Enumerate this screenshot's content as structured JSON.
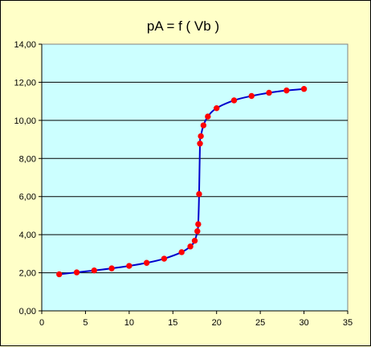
{
  "chart_data": {
    "type": "scatter",
    "title": "pA = f ( Vb )",
    "xlabel": "",
    "ylabel": "",
    "xlim": [
      0,
      35
    ],
    "ylim": [
      0,
      14
    ],
    "x_ticks": [
      0,
      5,
      10,
      15,
      20,
      25,
      30,
      35
    ],
    "y_ticks": [
      0,
      2,
      4,
      6,
      8,
      10,
      12,
      14
    ],
    "x_tick_labels": [
      "0",
      "5",
      "10",
      "15",
      "20",
      "25",
      "30",
      "35"
    ],
    "y_tick_labels": [
      "0,00",
      "2,00",
      "4,00",
      "6,00",
      "8,00",
      "10,00",
      "12,00",
      "14,00"
    ],
    "grid": "horizontal",
    "legend": "none",
    "series": [
      {
        "marker_color": "#ff0000",
        "line_color": "#0000cc",
        "x": [
          2,
          4,
          6,
          8,
          10,
          12,
          14,
          16,
          17,
          17.5,
          17.8,
          17.9,
          18,
          18.1,
          18.2,
          18.5,
          19,
          20,
          22,
          24,
          26,
          28,
          30
        ],
        "y": [
          1.92,
          2.02,
          2.12,
          2.23,
          2.36,
          2.52,
          2.74,
          3.08,
          3.38,
          3.68,
          4.18,
          4.55,
          6.13,
          8.78,
          9.17,
          9.74,
          10.2,
          10.64,
          11.05,
          11.28,
          11.45,
          11.57,
          11.65
        ]
      }
    ]
  }
}
